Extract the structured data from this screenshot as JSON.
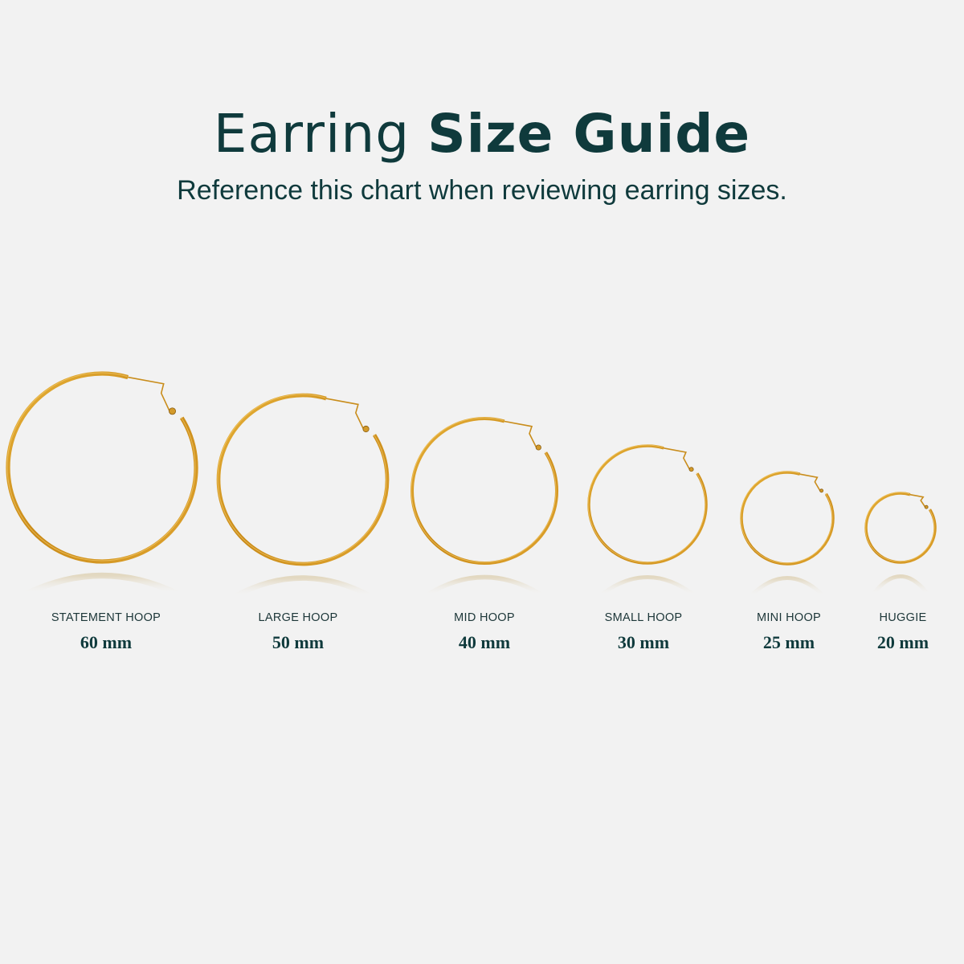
{
  "header": {
    "title_light": "Earring",
    "title_bold": "Size Guide",
    "subtitle": "Reference this chart when reviewing earring sizes."
  },
  "colors": {
    "text": "#0f3a3c",
    "gold": "#d4981f",
    "background": "#f2f2f2"
  },
  "hoops": [
    {
      "name": "STATEMENT HOOP",
      "size": "60 mm",
      "diameter_mm": 60
    },
    {
      "name": "LARGE HOOP",
      "size": "50 mm",
      "diameter_mm": 50
    },
    {
      "name": "MID HOOP",
      "size": "40 mm",
      "diameter_mm": 40
    },
    {
      "name": "SMALL HOOP",
      "size": "30 mm",
      "diameter_mm": 30
    },
    {
      "name": "MINI HOOP",
      "size": "25 mm",
      "diameter_mm": 25
    },
    {
      "name": "HUGGIE",
      "size": "20 mm",
      "diameter_mm": 20
    }
  ]
}
